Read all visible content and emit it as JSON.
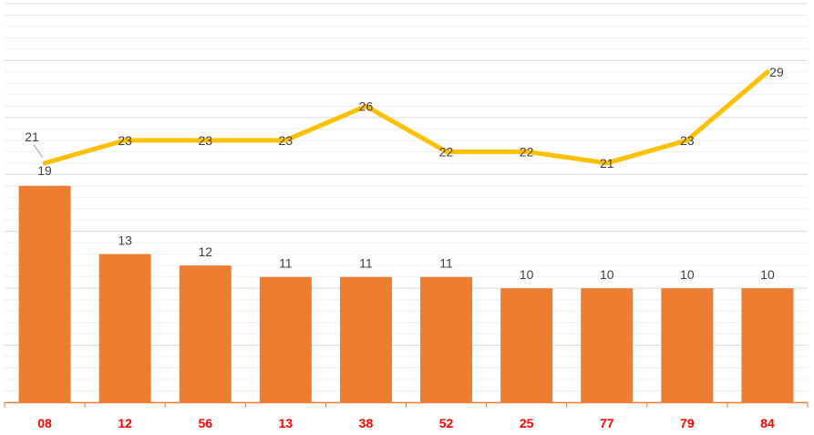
{
  "chart_data": {
    "type": "bar",
    "categories": [
      "08",
      "12",
      "56",
      "13",
      "38",
      "52",
      "25",
      "77",
      "79",
      "84"
    ],
    "series": [
      {
        "type": "bar",
        "values": [
          19,
          13,
          12,
          11,
          11,
          11,
          10,
          10,
          10,
          10
        ],
        "color": "#ED7D31"
      },
      {
        "type": "line",
        "values": [
          21,
          23,
          23,
          23,
          26,
          22,
          22,
          21,
          23,
          29
        ],
        "color": "#FFC000"
      }
    ],
    "bar_ylim": [
      0,
      35
    ],
    "line_ylim": [
      0,
      35
    ],
    "grid": true,
    "legend": "none",
    "tick_label_color": "#FF0000",
    "axis_color": "#ED7D31"
  }
}
